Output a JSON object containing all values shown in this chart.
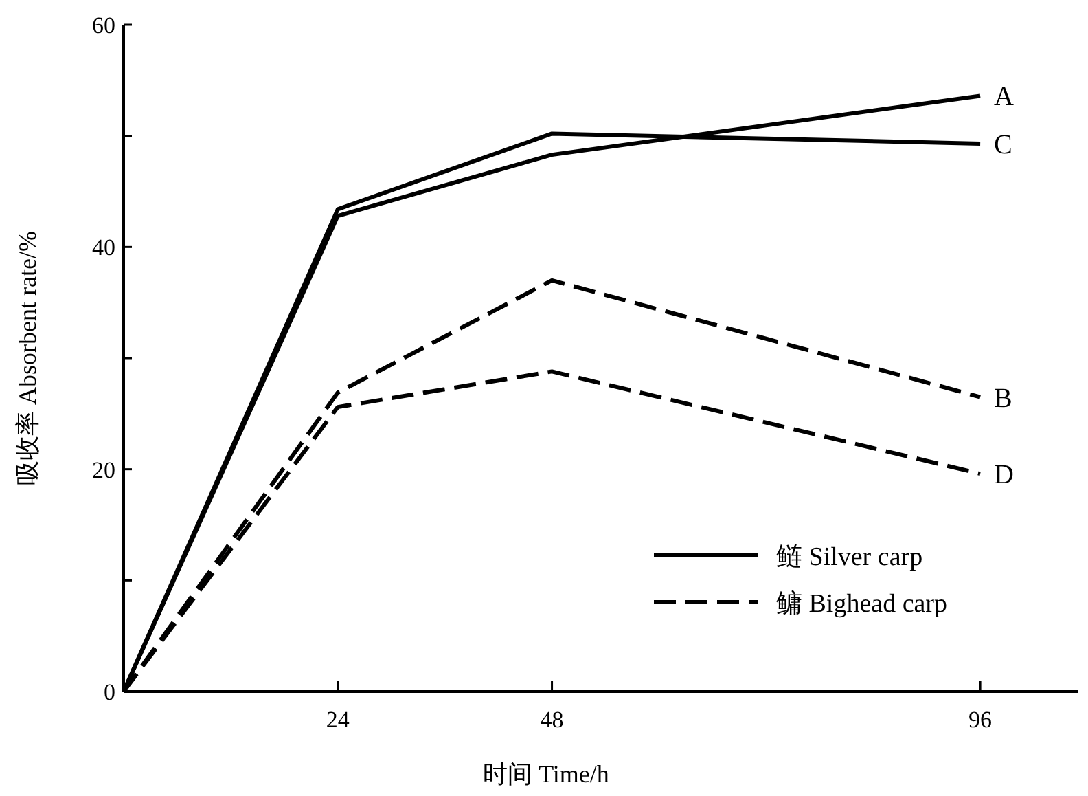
{
  "chart_data": {
    "type": "line",
    "xlabel": "时间 Time/h",
    "ylabel": "吸收率 Absorbent rate/%",
    "x": [
      0,
      24,
      48,
      96
    ],
    "xlim": [
      0,
      107
    ],
    "xticks": [
      {
        "value": 0,
        "label": null
      },
      24,
      48,
      96
    ],
    "ylim": [
      0,
      60
    ],
    "yticks": [
      0,
      {
        "value": 10,
        "label": null
      },
      20,
      {
        "value": 30,
        "label": null
      },
      40,
      {
        "value": 50,
        "label": null
      },
      60
    ],
    "grid": false,
    "marker": "none",
    "series": [
      {
        "name": "A",
        "color": "#000000",
        "line_style": "solid",
        "values": [
          0,
          42.8,
          48.3,
          53.6
        ]
      },
      {
        "name": "C",
        "color": "#000000",
        "line_style": "solid",
        "values": [
          0,
          43.4,
          50.2,
          49.3
        ]
      },
      {
        "name": "B",
        "color": "#000000",
        "line_style": "dashed",
        "values": [
          0,
          26.9,
          37.0,
          26.5
        ]
      },
      {
        "name": "D",
        "color": "#000000",
        "line_style": "dashed",
        "values": [
          0,
          25.6,
          28.8,
          19.6
        ]
      }
    ],
    "annotations": [
      "鲢 Silver carp",
      "鳙 Bighead carp"
    ]
  }
}
